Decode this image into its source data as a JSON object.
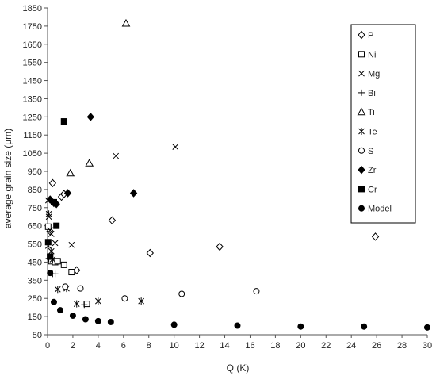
{
  "chart_data": {
    "type": "scatter",
    "title": "",
    "xlabel": "Q (K)",
    "ylabel": "average grain size (μm)",
    "xlim": [
      0,
      30
    ],
    "ylim": [
      50,
      1850
    ],
    "xticks": [
      0,
      2,
      4,
      6,
      8,
      10,
      12,
      14,
      16,
      18,
      20,
      22,
      24,
      26,
      28,
      30
    ],
    "yticks": [
      50,
      150,
      250,
      350,
      450,
      550,
      650,
      750,
      850,
      950,
      1050,
      1150,
      1250,
      1350,
      1450,
      1550,
      1650,
      1750,
      1850
    ],
    "grid": false,
    "legend_position": "top-right",
    "series": [
      {
        "name": "P",
        "marker": "diamond-open",
        "points": [
          [
            0.2,
            620
          ],
          [
            0.4,
            885
          ],
          [
            1.1,
            810
          ],
          [
            1.3,
            825
          ],
          [
            2.3,
            405
          ],
          [
            5.1,
            680
          ],
          [
            8.1,
            500
          ],
          [
            13.6,
            535
          ],
          [
            25.9,
            590
          ]
        ]
      },
      {
        "name": "Ni",
        "marker": "square-open",
        "points": [
          [
            0.05,
            645
          ],
          [
            0.2,
            480
          ],
          [
            0.3,
            455
          ],
          [
            0.6,
            450
          ],
          [
            0.8,
            455
          ],
          [
            1.3,
            435
          ],
          [
            1.9,
            395
          ],
          [
            3.1,
            220
          ]
        ]
      },
      {
        "name": "Mg",
        "marker": "x",
        "points": [
          [
            0.05,
            790
          ],
          [
            0.1,
            700
          ],
          [
            0.2,
            625
          ],
          [
            0.3,
            605
          ],
          [
            0.6,
            555
          ],
          [
            1.9,
            545
          ],
          [
            5.4,
            1035
          ],
          [
            10.1,
            1085
          ]
        ]
      },
      {
        "name": "Bi",
        "marker": "plus",
        "points": [
          [
            0.1,
            470
          ],
          [
            0.4,
            385
          ],
          [
            0.6,
            385
          ],
          [
            2.9,
            215
          ]
        ]
      },
      {
        "name": "Ti",
        "marker": "triangle-open",
        "points": [
          [
            1.8,
            940
          ],
          [
            3.3,
            995
          ],
          [
            6.2,
            1765
          ]
        ]
      },
      {
        "name": "Te",
        "marker": "asterisk",
        "points": [
          [
            0.05,
            540
          ],
          [
            0.1,
            715
          ],
          [
            0.3,
            510
          ],
          [
            0.4,
            465
          ],
          [
            0.8,
            300
          ],
          [
            1.5,
            305
          ],
          [
            2.3,
            220
          ],
          [
            4.0,
            235
          ],
          [
            7.4,
            235
          ]
        ]
      },
      {
        "name": "S",
        "marker": "circle-open",
        "points": [
          [
            1.4,
            315
          ],
          [
            2.6,
            305
          ],
          [
            6.1,
            250
          ],
          [
            10.6,
            275
          ],
          [
            16.5,
            290
          ]
        ]
      },
      {
        "name": "Zr",
        "marker": "diamond-filled",
        "points": [
          [
            0.2,
            795
          ],
          [
            0.5,
            775
          ],
          [
            0.7,
            770
          ],
          [
            1.6,
            830
          ],
          [
            3.4,
            1250
          ],
          [
            6.8,
            830
          ]
        ]
      },
      {
        "name": "Cr",
        "marker": "square-filled",
        "points": [
          [
            0.05,
            560
          ],
          [
            0.2,
            480
          ],
          [
            0.5,
            780
          ],
          [
            0.7,
            650
          ],
          [
            1.3,
            1225
          ]
        ]
      },
      {
        "name": "Model",
        "marker": "circle-filled",
        "points": [
          [
            0.2,
            390
          ],
          [
            0.5,
            230
          ],
          [
            1.0,
            185
          ],
          [
            2.0,
            155
          ],
          [
            3.0,
            135
          ],
          [
            4.0,
            125
          ],
          [
            5.0,
            120
          ],
          [
            10.0,
            105
          ],
          [
            15.0,
            100
          ],
          [
            20.0,
            95
          ],
          [
            25.0,
            95
          ],
          [
            30.0,
            90
          ]
        ]
      }
    ]
  }
}
